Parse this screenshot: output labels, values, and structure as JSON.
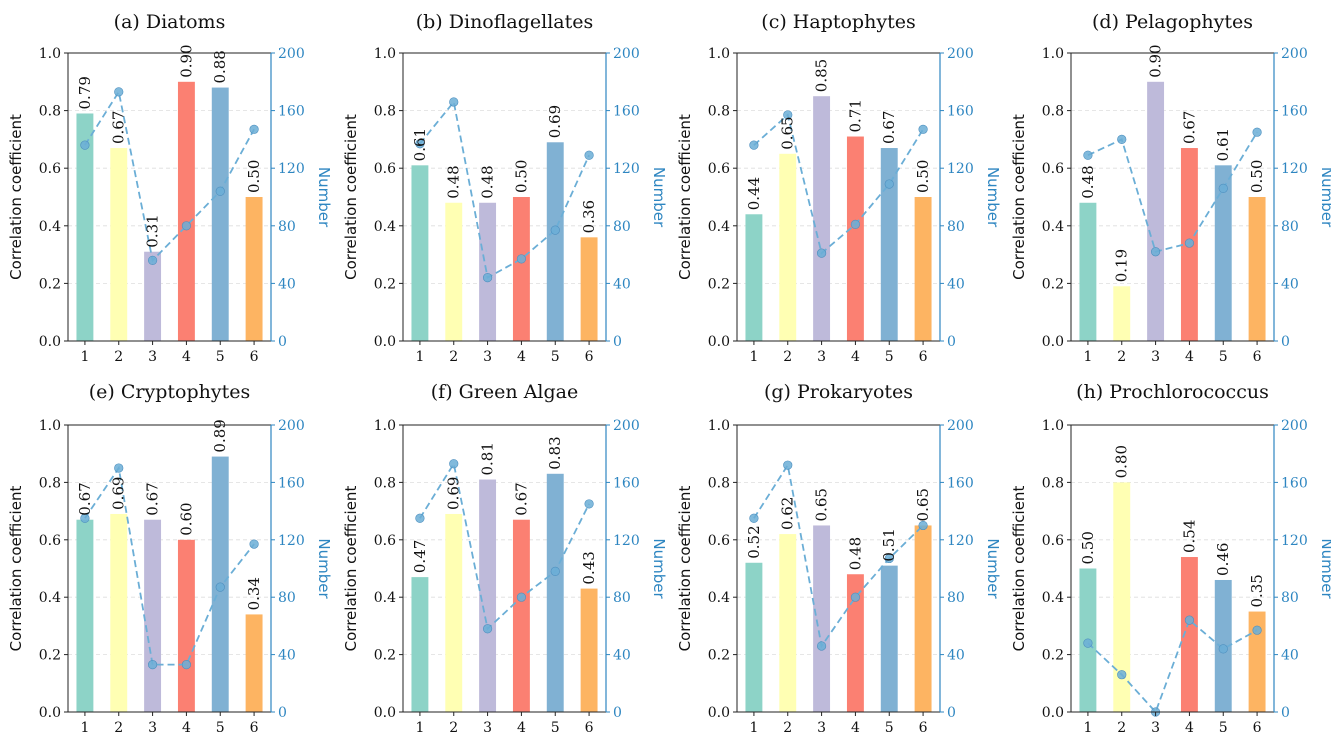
{
  "figure": {
    "left_axis_label": "Correlation coefficient",
    "right_axis_label": "Number",
    "colors": {
      "bars": [
        "#8dd3c7",
        "#ffffb3",
        "#bebada",
        "#fb8072",
        "#80b1d3",
        "#fdb462"
      ],
      "line": "#6baed6",
      "right_axis": "#2e86c1",
      "grid": "#dddddd"
    }
  },
  "chart_data": [
    {
      "type": "bar",
      "title": "(a) Diatoms",
      "categories": [
        "1",
        "2",
        "3",
        "4",
        "5",
        "6"
      ],
      "series": [
        {
          "values": [
            0.79,
            0.67,
            0.31,
            0.9,
            0.88,
            0.5
          ]
        }
      ],
      "line_values": [
        136,
        173,
        56,
        80,
        104,
        147
      ],
      "ylabel": "Correlation coefficient",
      "y2label": "Number",
      "ylim": [
        0,
        1.0
      ],
      "y2lim": [
        0,
        200
      ],
      "yticks": [
        "0.0",
        "0.2",
        "0.4",
        "0.6",
        "0.8",
        "1.0"
      ],
      "y2ticks": [
        "0",
        "40",
        "80",
        "120",
        "160",
        "200"
      ],
      "grid": true
    },
    {
      "type": "bar",
      "title": "(b) Dinoflagellates",
      "categories": [
        "1",
        "2",
        "3",
        "4",
        "5",
        "6"
      ],
      "series": [
        {
          "values": [
            0.61,
            0.48,
            0.48,
            0.5,
            0.69,
            0.36
          ]
        }
      ],
      "line_values": [
        137,
        166,
        44,
        57,
        77,
        129
      ],
      "ylabel": "Correlation coefficient",
      "y2label": "Number",
      "ylim": [
        0,
        1.0
      ],
      "y2lim": [
        0,
        200
      ],
      "yticks": [
        "0.0",
        "0.2",
        "0.4",
        "0.6",
        "0.8",
        "1.0"
      ],
      "y2ticks": [
        "0",
        "40",
        "80",
        "120",
        "160",
        "200"
      ],
      "grid": true
    },
    {
      "type": "bar",
      "title": "(c) Haptophytes",
      "categories": [
        "1",
        "2",
        "3",
        "4",
        "5",
        "6"
      ],
      "series": [
        {
          "values": [
            0.44,
            0.65,
            0.85,
            0.71,
            0.67,
            0.5
          ]
        }
      ],
      "line_values": [
        136,
        157,
        61,
        81,
        109,
        147
      ],
      "ylabel": "Correlation coefficient",
      "y2label": "Number",
      "ylim": [
        0,
        1.0
      ],
      "y2lim": [
        0,
        200
      ],
      "yticks": [
        "0.0",
        "0.2",
        "0.4",
        "0.6",
        "0.8",
        "1.0"
      ],
      "y2ticks": [
        "0",
        "40",
        "80",
        "120",
        "160",
        "200"
      ],
      "grid": true
    },
    {
      "type": "bar",
      "title": "(d) Pelagophytes",
      "categories": [
        "1",
        "2",
        "3",
        "4",
        "5",
        "6"
      ],
      "series": [
        {
          "values": [
            0.48,
            0.19,
            0.9,
            0.67,
            0.61,
            0.5
          ]
        }
      ],
      "line_values": [
        129,
        140,
        62,
        68,
        106,
        145
      ],
      "ylabel": "Correlation coefficient",
      "y2label": "Number",
      "ylim": [
        0,
        1.0
      ],
      "y2lim": [
        0,
        200
      ],
      "yticks": [
        "0.0",
        "0.2",
        "0.4",
        "0.6",
        "0.8",
        "1.0"
      ],
      "y2ticks": [
        "0",
        "40",
        "80",
        "120",
        "160",
        "200"
      ],
      "grid": true
    },
    {
      "type": "bar",
      "title": "(e) Cryptophytes",
      "categories": [
        "1",
        "2",
        "3",
        "4",
        "5",
        "6"
      ],
      "series": [
        {
          "values": [
            0.67,
            0.69,
            0.67,
            0.6,
            0.89,
            0.34
          ]
        }
      ],
      "line_values": [
        135,
        170,
        33,
        33,
        87,
        117
      ],
      "ylabel": "Correlation coefficient",
      "y2label": "Number",
      "ylim": [
        0,
        1.0
      ],
      "y2lim": [
        0,
        200
      ],
      "yticks": [
        "0.0",
        "0.2",
        "0.4",
        "0.6",
        "0.8",
        "1.0"
      ],
      "y2ticks": [
        "0",
        "40",
        "80",
        "120",
        "160",
        "200"
      ],
      "grid": true
    },
    {
      "type": "bar",
      "title": "(f) Green Algae",
      "categories": [
        "1",
        "2",
        "3",
        "4",
        "5",
        "6"
      ],
      "series": [
        {
          "values": [
            0.47,
            0.69,
            0.81,
            0.67,
            0.83,
            0.43
          ]
        }
      ],
      "line_values": [
        135,
        173,
        58,
        80,
        98,
        145
      ],
      "ylabel": "Correlation coefficient",
      "y2label": "Number",
      "ylim": [
        0,
        1.0
      ],
      "y2lim": [
        0,
        200
      ],
      "yticks": [
        "0.0",
        "0.2",
        "0.4",
        "0.6",
        "0.8",
        "1.0"
      ],
      "y2ticks": [
        "0",
        "40",
        "80",
        "120",
        "160",
        "200"
      ],
      "grid": true
    },
    {
      "type": "bar",
      "title": "(g) Prokaryotes",
      "categories": [
        "1",
        "2",
        "3",
        "4",
        "5",
        "6"
      ],
      "series": [
        {
          "values": [
            0.52,
            0.62,
            0.65,
            0.48,
            0.51,
            0.65
          ]
        }
      ],
      "line_values": [
        135,
        172,
        46,
        80,
        107,
        130
      ],
      "ylabel": "Correlation coefficient",
      "y2label": "Number",
      "ylim": [
        0,
        1.0
      ],
      "y2lim": [
        0,
        200
      ],
      "yticks": [
        "0.0",
        "0.2",
        "0.4",
        "0.6",
        "0.8",
        "1.0"
      ],
      "y2ticks": [
        "0",
        "40",
        "80",
        "120",
        "160",
        "200"
      ],
      "grid": true
    },
    {
      "type": "bar",
      "title": "(h) Prochlorococcus",
      "categories": [
        "1",
        "2",
        "3",
        "4",
        "5",
        "6"
      ],
      "series": [
        {
          "values": [
            0.5,
            0.8,
            null,
            0.54,
            0.46,
            0.35
          ]
        }
      ],
      "line_values": [
        48,
        26,
        0,
        64,
        44,
        57
      ],
      "ylabel": "Correlation coefficient",
      "y2label": "Number",
      "ylim": [
        0,
        1.0
      ],
      "y2lim": [
        0,
        200
      ],
      "yticks": [
        "0.0",
        "0.2",
        "0.4",
        "0.6",
        "0.8",
        "1.0"
      ],
      "y2ticks": [
        "0",
        "40",
        "80",
        "120",
        "160",
        "200"
      ],
      "grid": true
    }
  ]
}
